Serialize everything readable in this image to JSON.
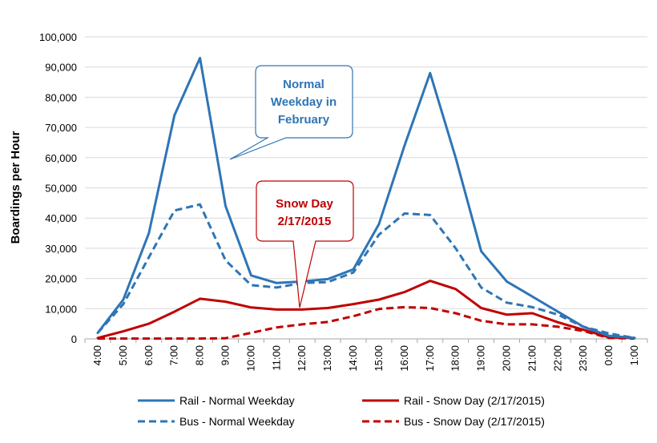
{
  "chart_data": {
    "type": "line",
    "ylabel": "Boardings per Hour",
    "ylim": [
      0,
      100000
    ],
    "yticks": [
      0,
      10000,
      20000,
      30000,
      40000,
      50000,
      60000,
      70000,
      80000,
      90000,
      100000
    ],
    "ytick_labels": [
      "0",
      "10,000",
      "20,000",
      "30,000",
      "40,000",
      "50,000",
      "60,000",
      "70,000",
      "80,000",
      "90,000",
      "100,000"
    ],
    "categories": [
      "4:00",
      "5:00",
      "6:00",
      "7:00",
      "8:00",
      "9:00",
      "10:00",
      "11:00",
      "12:00",
      "13:00",
      "14:00",
      "15:00",
      "16:00",
      "17:00",
      "18:00",
      "19:00",
      "20:00",
      "21:00",
      "22:00",
      "23:00",
      "0:00",
      "1:00"
    ],
    "grid": "horizontal",
    "legend_position": "bottom",
    "series": [
      {
        "name": "Rail - Normal Weekday",
        "color": "#2E75B6",
        "dash": "solid",
        "values": [
          2000,
          13000,
          35000,
          74000,
          93000,
          44000,
          21000,
          18500,
          19000,
          19800,
          23000,
          38000,
          64000,
          88000,
          60000,
          29000,
          19000,
          14000,
          9000,
          4000,
          1000,
          300
        ]
      },
      {
        "name": "Rail - Snow Day (2/17/2015)",
        "color": "#C00000",
        "dash": "solid",
        "values": [
          300,
          2500,
          5000,
          9000,
          13300,
          12300,
          10400,
          9700,
          9700,
          10200,
          11500,
          13000,
          15500,
          19200,
          16500,
          10200,
          8000,
          8500,
          5500,
          3000,
          500,
          300
        ]
      },
      {
        "name": "Bus - Normal Weekday",
        "color": "#2E75B6",
        "dash": "dashed",
        "values": [
          2000,
          11500,
          27000,
          42500,
          44500,
          26000,
          17800,
          17000,
          18500,
          18800,
          22000,
          34500,
          41500,
          41000,
          30000,
          17000,
          12000,
          10500,
          8000,
          4000,
          1800,
          300
        ]
      },
      {
        "name": "Bus - Snow Day (2/17/2015)",
        "color": "#C00000",
        "dash": "dashed",
        "values": [
          100,
          100,
          100,
          100,
          100,
          200,
          2000,
          3800,
          4800,
          5600,
          7500,
          9900,
          10500,
          10200,
          8500,
          6000,
          4800,
          4800,
          4000,
          2600,
          300,
          100
        ]
      }
    ],
    "annotations": [
      {
        "text_lines": [
          "Normal",
          "Weekday in",
          "February"
        ],
        "color": "#2E75B6"
      },
      {
        "text_lines": [
          "Snow Day",
          "2/17/2015"
        ],
        "color": "#C00000"
      }
    ]
  }
}
